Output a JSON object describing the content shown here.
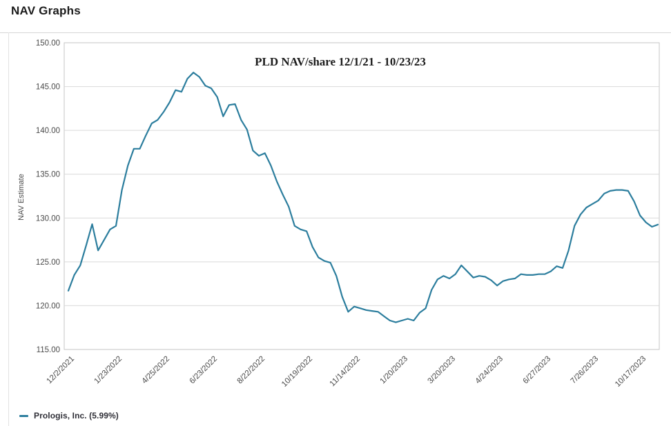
{
  "page": {
    "title": "NAV Graphs"
  },
  "legend": {
    "label": "Prologis, Inc. (5.99%)"
  },
  "colors": {
    "line": "#2b7d9d",
    "grid": "#d9d9d9",
    "plot_border": "#c6c6c6",
    "axis_text": "#4a4a4a",
    "divider": "#d6d6d6",
    "title_text": "#1c1c1c"
  },
  "chart_data": {
    "type": "line",
    "title": "PLD NAV/share 12/1/21 - 10/23/23",
    "xlabel": "",
    "ylabel": "NAV Estimate",
    "ylim": [
      115,
      150
    ],
    "ytick_values": [
      150,
      145,
      140,
      135,
      130,
      125,
      120,
      115
    ],
    "ytick_labels": [
      "150.00",
      "145.00",
      "140.00",
      "135.00",
      "130.00",
      "125.00",
      "120.00",
      "115.00"
    ],
    "grid": "horizontal-only",
    "legend_position": "bottom-left",
    "xtick_every_n_points": 8,
    "xtick_labels": [
      "12/2/2021",
      "1/23/2022",
      "4/25/2022",
      "6/23/2022",
      "8/22/2022",
      "10/19/2022",
      "11/14/2022",
      "1/20/2023",
      "3/20/2023",
      "4/24/2023",
      "6/27/2023",
      "7/26/2023",
      "10/17/2023"
    ],
    "series": [
      {
        "name": "Prologis, Inc. (5.99%)",
        "color": "#2b7d9d",
        "values": [
          121.7,
          123.5,
          124.6,
          126.9,
          129.3,
          126.3,
          127.5,
          128.7,
          129.1,
          133.2,
          136.0,
          137.9,
          137.9,
          139.4,
          140.8,
          141.2,
          142.1,
          143.2,
          144.6,
          144.4,
          145.9,
          146.6,
          146.1,
          145.1,
          144.8,
          143.8,
          141.6,
          142.9,
          143.0,
          141.2,
          140.1,
          137.7,
          137.1,
          137.4,
          136.0,
          134.2,
          132.7,
          131.3,
          129.1,
          128.7,
          128.5,
          126.7,
          125.5,
          125.1,
          124.9,
          123.4,
          121.0,
          119.3,
          119.9,
          119.7,
          119.5,
          119.4,
          119.3,
          118.8,
          118.3,
          118.1,
          118.3,
          118.5,
          118.3,
          119.2,
          119.7,
          121.8,
          123.0,
          123.4,
          123.1,
          123.6,
          124.6,
          123.9,
          123.2,
          123.4,
          123.3,
          122.9,
          122.3,
          122.8,
          123.0,
          123.1,
          123.6,
          123.5,
          123.5,
          123.6,
          123.6,
          123.9,
          124.5,
          124.3,
          126.3,
          129.1,
          130.4,
          131.2,
          131.6,
          132.0,
          132.8,
          133.1,
          133.2,
          133.2,
          133.1,
          131.9,
          130.3,
          129.5,
          129.0,
          129.25
        ]
      }
    ]
  }
}
